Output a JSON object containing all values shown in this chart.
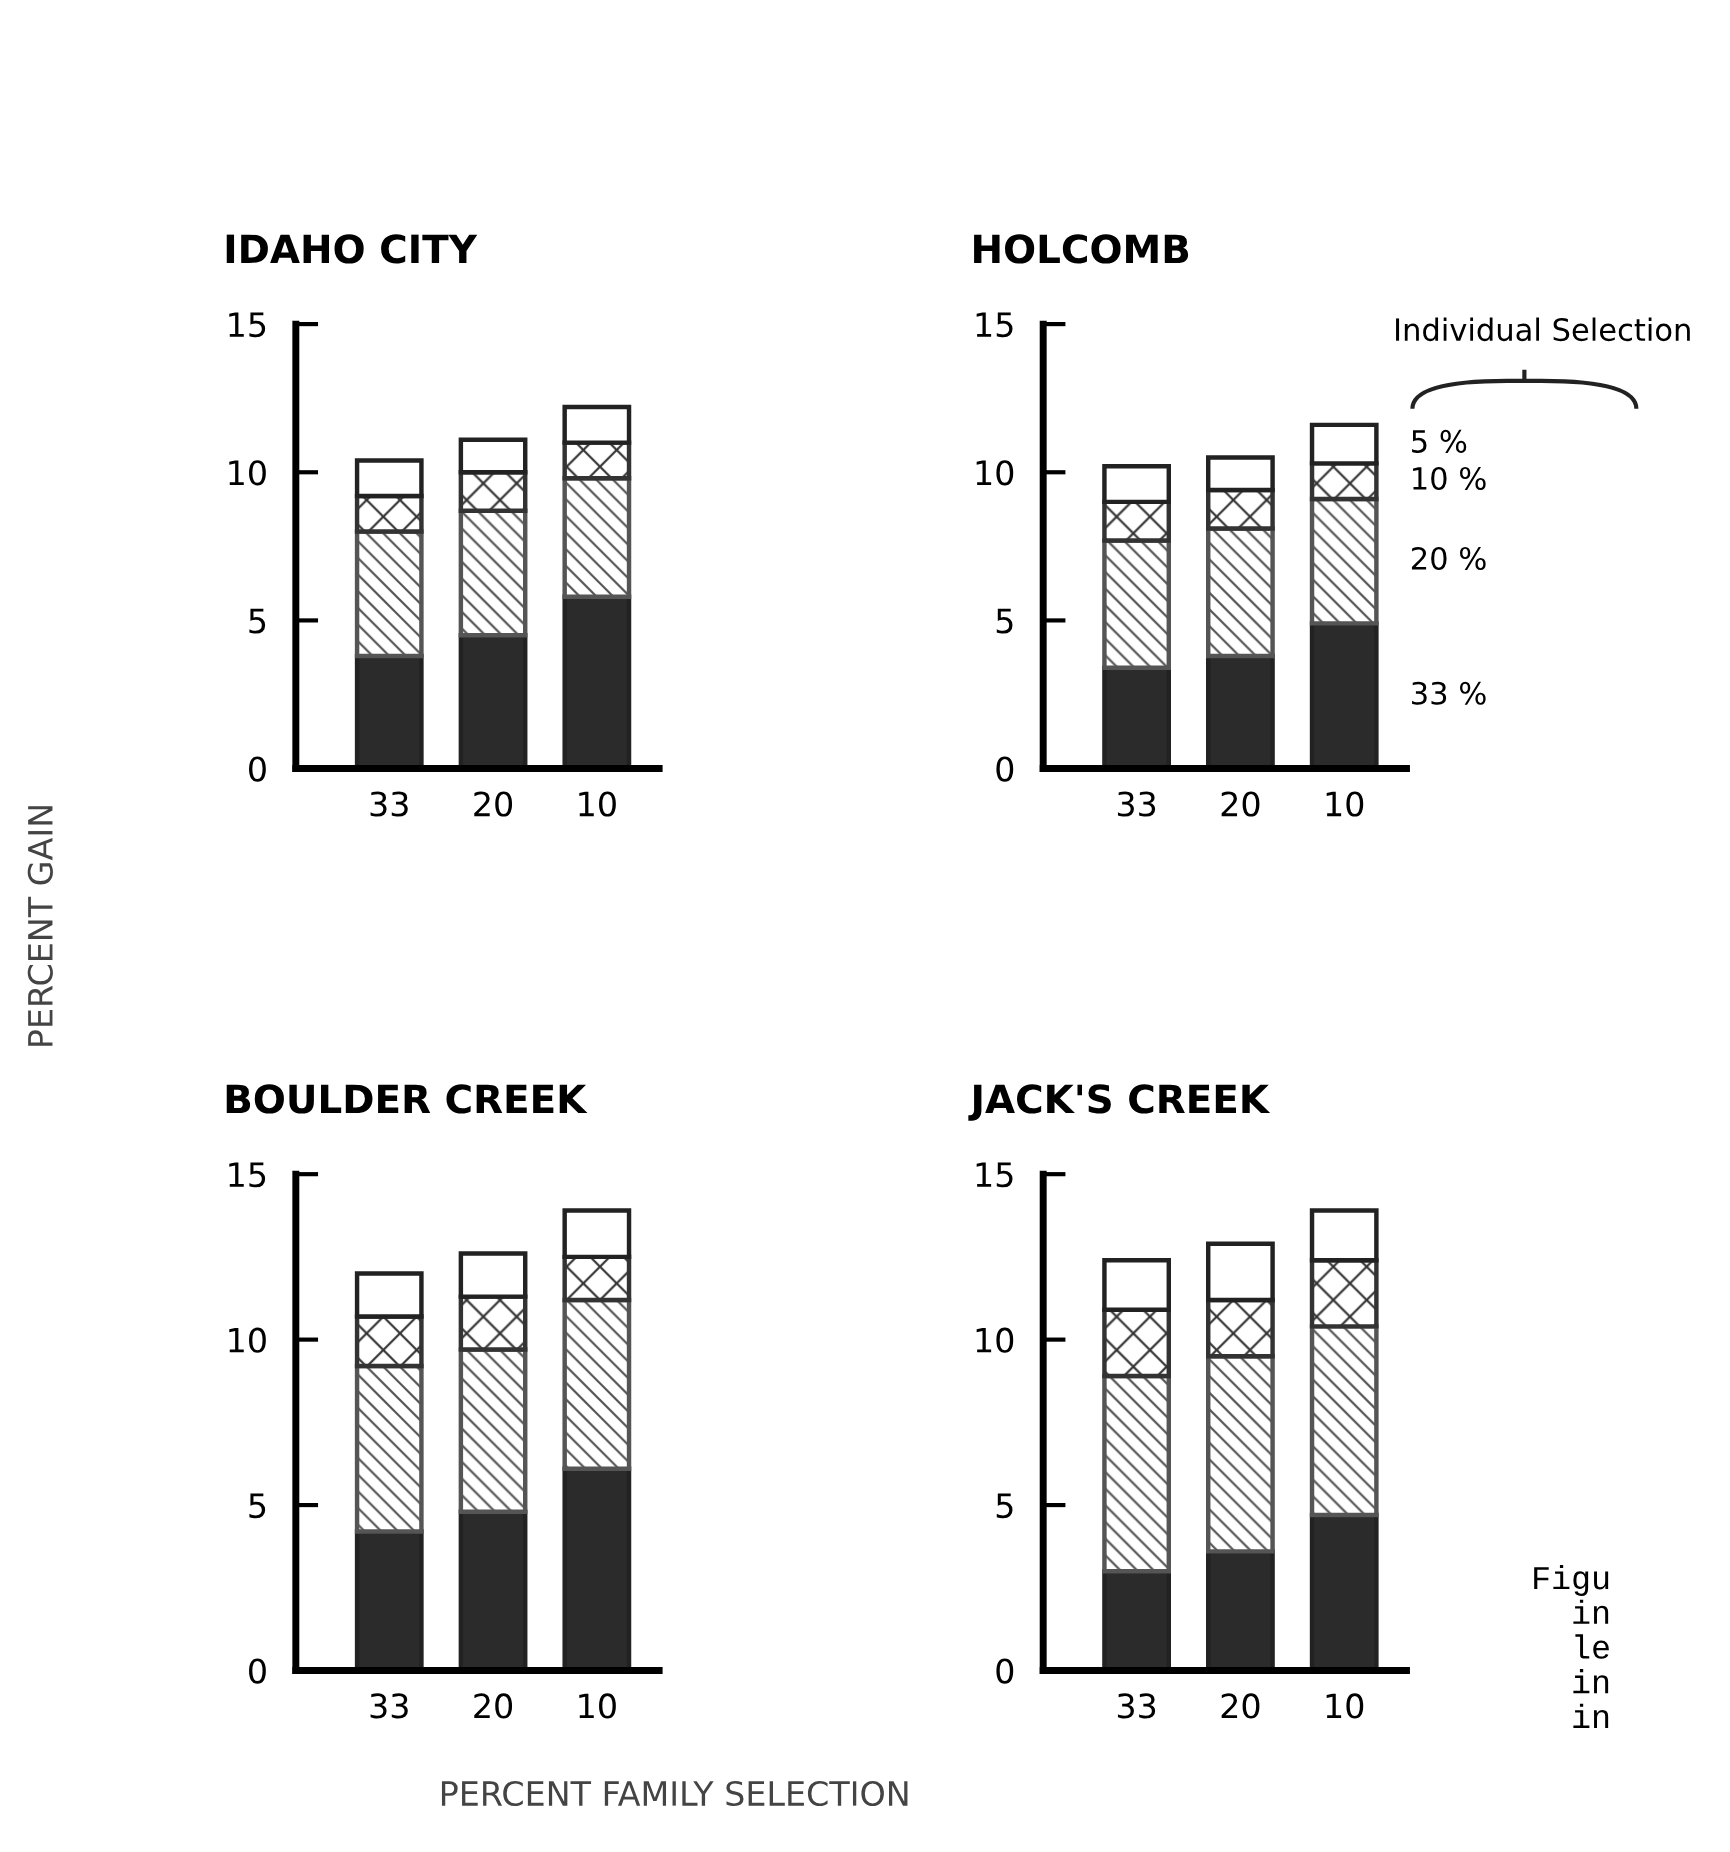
{
  "chart_data": [
    {
      "type": "bar",
      "stacked": true,
      "title": "IDAHO CITY",
      "ylabel": "PERCENT GAIN",
      "categories": [
        "33",
        "20",
        "10"
      ],
      "ylim": [
        0,
        15
      ],
      "yticks": [
        0,
        5,
        10,
        15
      ],
      "series": [
        {
          "color": "#2b2b2b",
          "values": [
            3.8,
            4.5,
            5.8
          ]
        },
        {
          "color": "#555555",
          "values": [
            4.2,
            4.2,
            4.0
          ]
        },
        {
          "color": "#333333",
          "values": [
            1.2,
            1.3,
            1.2
          ]
        },
        {
          "color": "#ffffff",
          "values": [
            1.2,
            1.1,
            1.2
          ]
        }
      ]
    },
    {
      "type": "bar",
      "stacked": true,
      "title": "HOLCOMB",
      "legend_title": "Individual Selection",
      "legend": "right",
      "categories": [
        "33",
        "20",
        "10"
      ],
      "ylim": [
        0,
        15
      ],
      "yticks": [
        0,
        5,
        10,
        15
      ],
      "series": [
        {
          "name": "33 %",
          "color": "#2b2b2b",
          "values": [
            3.4,
            3.8,
            4.9
          ]
        },
        {
          "name": "20 %",
          "color": "#555555",
          "values": [
            4.3,
            4.3,
            4.2
          ]
        },
        {
          "name": "10 %",
          "color": "#333333",
          "values": [
            1.3,
            1.3,
            1.2
          ]
        },
        {
          "name": "5 %",
          "color": "#ffffff",
          "values": [
            1.2,
            1.1,
            1.3
          ]
        }
      ]
    },
    {
      "type": "bar",
      "stacked": true,
      "title": "BOULDER CREEK",
      "xlabel": "PERCENT FAMILY SELECTION",
      "categories": [
        "33",
        "20",
        "10"
      ],
      "ylim": [
        0,
        15
      ],
      "yticks": [
        0,
        5,
        10,
        15
      ],
      "series": [
        {
          "color": "#2b2b2b",
          "values": [
            4.2,
            4.8,
            6.1
          ]
        },
        {
          "color": "#555555",
          "values": [
            5.0,
            4.9,
            5.1
          ]
        },
        {
          "color": "#333333",
          "values": [
            1.5,
            1.6,
            1.3
          ]
        },
        {
          "color": "#ffffff",
          "values": [
            1.3,
            1.3,
            1.4
          ]
        }
      ]
    },
    {
      "type": "bar",
      "stacked": true,
      "title": "JACK'S CREEK",
      "annotations": [
        "Figu\n  in\n  le\n  in\n  in"
      ],
      "categories": [
        "33",
        "20",
        "10"
      ],
      "ylim": [
        0,
        15
      ],
      "yticks": [
        0,
        5,
        10,
        15
      ],
      "series": [
        {
          "color": "#2b2b2b",
          "values": [
            3.0,
            3.6,
            4.7
          ]
        },
        {
          "color": "#555555",
          "values": [
            5.9,
            5.9,
            5.7
          ]
        },
        {
          "color": "#333333",
          "values": [
            2.0,
            1.7,
            2.0
          ]
        },
        {
          "color": "#ffffff",
          "values": [
            1.5,
            1.7,
            1.5
          ]
        }
      ]
    }
  ]
}
